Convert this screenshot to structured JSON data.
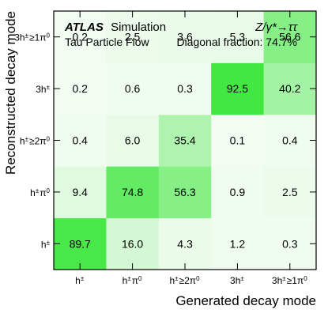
{
  "chart_data": {
    "type": "heatmap",
    "title_bold": "ATLAS",
    "title_rest": "Simulation",
    "subtitle": "Tau Particle Flow",
    "process": "Z/γ*→ττ",
    "annotation": "Diagonal fraction: 74.7%",
    "xlabel": "Generated decay mode",
    "ylabel": "Reconstructed decay mode",
    "x_categories": [
      "h±",
      "h±π0",
      "h±≥2π0",
      "3h±",
      "3h±≥1π0"
    ],
    "y_categories": [
      "h±",
      "h±π0",
      "h±≥2π0",
      "3h±",
      "3h±≥1π0"
    ],
    "values": [
      [
        89.7,
        16.0,
        4.3,
        1.2,
        0.3
      ],
      [
        9.4,
        74.8,
        56.3,
        0.9,
        2.5
      ],
      [
        0.4,
        6.0,
        35.4,
        0.1,
        0.4
      ],
      [
        0.2,
        0.6,
        0.3,
        92.5,
        40.2
      ],
      [
        0.2,
        2.5,
        3.6,
        5.3,
        56.6
      ]
    ],
    "value_range": [
      0,
      100
    ],
    "colors": {
      "low": "#f2fcf2",
      "high": "#33e633",
      "frame": "#000000"
    }
  }
}
